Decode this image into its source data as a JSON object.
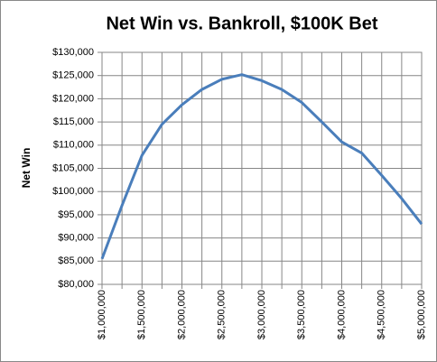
{
  "chart_data": {
    "type": "line",
    "title": "Net Win vs. Bankroll, $100K Bet",
    "y_label": "Net Win",
    "categories": [
      "$1,000,000",
      null,
      "$1,500,000",
      null,
      "$2,000,000",
      null,
      "$2,500,000",
      null,
      "$3,000,000",
      null,
      "$3,500,000",
      null,
      "$4,000,000",
      null,
      "$4,500,000",
      null,
      "$5,000,000"
    ],
    "series": [
      {
        "name": "Net Win",
        "color": "#4a7ebb",
        "values": [
          85500,
          97000,
          107800,
          114500,
          118700,
          122000,
          124200,
          125200,
          123900,
          122000,
          119200,
          115000,
          110700,
          108300,
          103500,
          98500,
          93000
        ]
      }
    ],
    "ylim": [
      80000,
      130000
    ],
    "yticks": [
      {
        "value": 80000,
        "label": "$80,000"
      },
      {
        "value": 85000,
        "label": "$85,000"
      },
      {
        "value": 90000,
        "label": "$90,000"
      },
      {
        "value": 95000,
        "label": "$95,000"
      },
      {
        "value": 100000,
        "label": "$100,000"
      },
      {
        "value": 105000,
        "label": "$105,000"
      },
      {
        "value": 110000,
        "label": "$110,000"
      },
      {
        "value": 115000,
        "label": "$115,000"
      },
      {
        "value": 120000,
        "label": "$120,000"
      },
      {
        "value": 125000,
        "label": "$125,000"
      },
      {
        "value": 130000,
        "label": "$130,000"
      }
    ],
    "grid": true
  }
}
